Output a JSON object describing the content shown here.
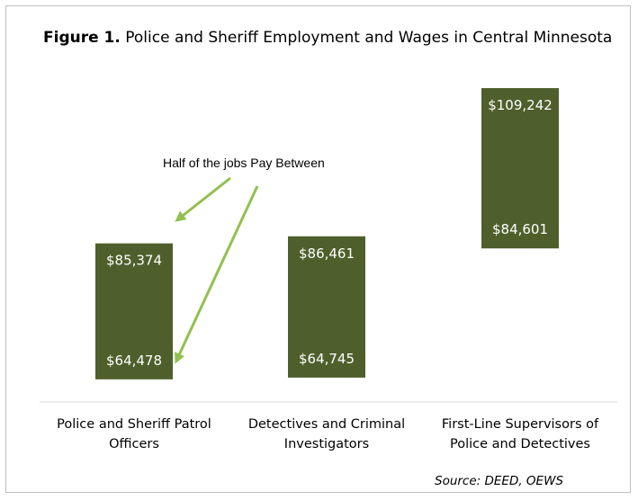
{
  "chart_data": {
    "type": "bar",
    "subtype": "floating-range",
    "title_prefix": "Figure 1.",
    "title": "Police and Sheriff Employment and Wages in Central Minnesota",
    "categories": [
      "Police and Sheriff Patrol Officers",
      "Detectives and Criminal Investigators",
      "First-Line Supervisors of Police and Detectives"
    ],
    "series": [
      {
        "low": [
          64478,
          64745,
          84601
        ],
        "high": [
          85374,
          86461,
          109242
        ]
      }
    ],
    "data_labels_low": [
      "$64,478",
      "$64,745",
      "$84,601"
    ],
    "data_labels_high": [
      "$85,374",
      "$86,461",
      "$109,242"
    ],
    "annotation": "Half of the jobs Pay Between",
    "source": "Source: DEED, OEWS",
    "ylim": [
      61000,
      112000
    ],
    "grid": false,
    "legend": "none",
    "colors": {
      "bar": "#4e5f2b",
      "arrow": "#92c050",
      "axis": "#d9d9d9",
      "label_text": "#ffffff"
    }
  }
}
